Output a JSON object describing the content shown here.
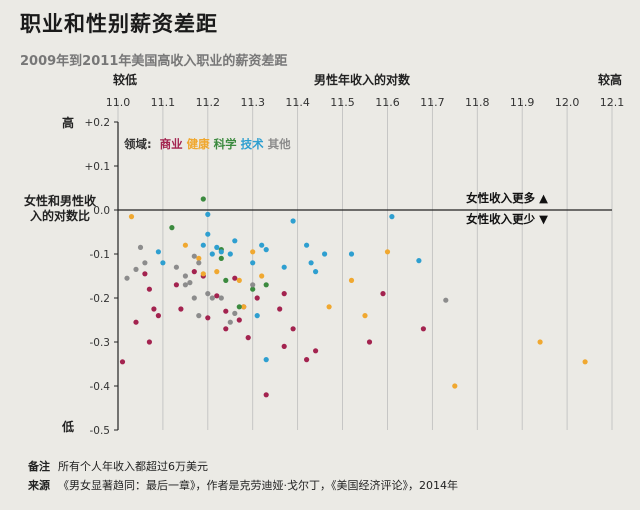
{
  "title": "职业和性别薪资差距",
  "subtitle": "2009年到2011年美国高收入职业的薪资差距",
  "notes": {
    "note_key": "备注",
    "note_text": "所有个人年收入都超过6万美元",
    "source_key": "来源",
    "source_text": "《男女显著趋同：最后一章》，作者是克劳迪娅·戈尔丁，《美国经济评论》，2014年"
  },
  "legend": {
    "prefix": "领域:",
    "items": [
      {
        "name": "商业",
        "color": "#a3234f"
      },
      {
        "name": "健康",
        "color": "#f0a830"
      },
      {
        "name": "科学",
        "color": "#3b8a3e"
      },
      {
        "name": "技术",
        "color": "#2e9fd0"
      },
      {
        "name": "其他",
        "color": "#8c8c8c"
      }
    ]
  },
  "chart_data": {
    "type": "scatter",
    "xlabel": "男性年收入的对数",
    "ylabel": "女性和男性收入的对数比",
    "x_low_label": "较低",
    "x_high_label": "较高",
    "y_high_label": "高",
    "y_low_label": "低",
    "annotation_more": "女性收入更多 ▲",
    "annotation_less": "女性收入更少 ▼",
    "xlim": [
      11.0,
      12.1
    ],
    "ylim": [
      -0.5,
      0.2
    ],
    "x_ticks": [
      "11.0",
      "11.1",
      "11.2",
      "11.3",
      "11.4",
      "11.5",
      "11.6",
      "11.7",
      "11.8",
      "11.9",
      "12.0",
      "12.1"
    ],
    "y_ticks": [
      "+0.2",
      "+0.1",
      "0.0",
      "-0.1",
      "-0.2",
      "-0.3",
      "-0.4",
      "-0.5"
    ],
    "series": [
      {
        "name": "商业",
        "color": "#a3234f",
        "points": [
          [
            11.01,
            -0.345
          ],
          [
            11.04,
            -0.255
          ],
          [
            11.06,
            -0.145
          ],
          [
            11.07,
            -0.3
          ],
          [
            11.07,
            -0.18
          ],
          [
            11.08,
            -0.225
          ],
          [
            11.09,
            -0.24
          ],
          [
            11.13,
            -0.17
          ],
          [
            11.14,
            -0.225
          ],
          [
            11.17,
            -0.14
          ],
          [
            11.19,
            -0.15
          ],
          [
            11.2,
            -0.245
          ],
          [
            11.22,
            -0.195
          ],
          [
            11.24,
            -0.23
          ],
          [
            11.24,
            -0.27
          ],
          [
            11.26,
            -0.155
          ],
          [
            11.27,
            -0.25
          ],
          [
            11.28,
            -0.22
          ],
          [
            11.29,
            -0.29
          ],
          [
            11.31,
            -0.2
          ],
          [
            11.33,
            -0.42
          ],
          [
            11.36,
            -0.225
          ],
          [
            11.37,
            -0.31
          ],
          [
            11.39,
            -0.27
          ],
          [
            11.42,
            -0.34
          ],
          [
            11.44,
            -0.32
          ],
          [
            11.37,
            -0.19
          ],
          [
            11.56,
            -0.3
          ],
          [
            11.59,
            -0.19
          ],
          [
            11.68,
            -0.27
          ]
        ]
      },
      {
        "name": "健康",
        "color": "#f0a830",
        "points": [
          [
            11.03,
            -0.015
          ],
          [
            11.15,
            -0.08
          ],
          [
            11.18,
            -0.11
          ],
          [
            11.19,
            -0.145
          ],
          [
            11.22,
            -0.14
          ],
          [
            11.27,
            -0.16
          ],
          [
            11.3,
            -0.095
          ],
          [
            11.32,
            -0.15
          ],
          [
            11.28,
            -0.22
          ],
          [
            11.47,
            -0.22
          ],
          [
            11.52,
            -0.16
          ],
          [
            11.55,
            -0.24
          ],
          [
            11.6,
            -0.095
          ],
          [
            11.75,
            -0.4
          ],
          [
            11.94,
            -0.3
          ],
          [
            12.04,
            -0.345
          ]
        ]
      },
      {
        "name": "科学",
        "color": "#3b8a3e",
        "points": [
          [
            11.12,
            -0.04
          ],
          [
            11.19,
            0.025
          ],
          [
            11.23,
            -0.09
          ],
          [
            11.24,
            -0.16
          ],
          [
            11.23,
            -0.11
          ],
          [
            11.27,
            -0.22
          ],
          [
            11.3,
            -0.18
          ],
          [
            11.33,
            -0.17
          ]
        ]
      },
      {
        "name": "技术",
        "color": "#2e9fd0",
        "points": [
          [
            11.09,
            -0.095
          ],
          [
            11.1,
            -0.12
          ],
          [
            11.19,
            -0.08
          ],
          [
            11.2,
            -0.01
          ],
          [
            11.2,
            -0.055
          ],
          [
            11.21,
            -0.1
          ],
          [
            11.22,
            -0.085
          ],
          [
            11.23,
            -0.095
          ],
          [
            11.25,
            -0.1
          ],
          [
            11.26,
            -0.07
          ],
          [
            11.3,
            -0.12
          ],
          [
            11.31,
            -0.24
          ],
          [
            11.32,
            -0.08
          ],
          [
            11.33,
            -0.09
          ],
          [
            11.33,
            -0.34
          ],
          [
            11.37,
            -0.13
          ],
          [
            11.39,
            -0.025
          ],
          [
            11.42,
            -0.08
          ],
          [
            11.43,
            -0.12
          ],
          [
            11.44,
            -0.14
          ],
          [
            11.46,
            -0.1
          ],
          [
            11.52,
            -0.1
          ],
          [
            11.61,
            -0.015
          ],
          [
            11.67,
            -0.115
          ]
        ]
      },
      {
        "name": "其他",
        "color": "#8c8c8c",
        "points": [
          [
            11.02,
            -0.155
          ],
          [
            11.04,
            -0.135
          ],
          [
            11.05,
            -0.085
          ],
          [
            11.06,
            -0.12
          ],
          [
            11.13,
            -0.13
          ],
          [
            11.15,
            -0.15
          ],
          [
            11.15,
            -0.17
          ],
          [
            11.16,
            -0.165
          ],
          [
            11.17,
            -0.105
          ],
          [
            11.17,
            -0.2
          ],
          [
            11.18,
            -0.12
          ],
          [
            11.18,
            -0.24
          ],
          [
            11.2,
            -0.19
          ],
          [
            11.21,
            -0.2
          ],
          [
            11.23,
            -0.2
          ],
          [
            11.25,
            -0.255
          ],
          [
            11.26,
            -0.235
          ],
          [
            11.3,
            -0.17
          ],
          [
            11.73,
            -0.205
          ]
        ]
      }
    ]
  }
}
